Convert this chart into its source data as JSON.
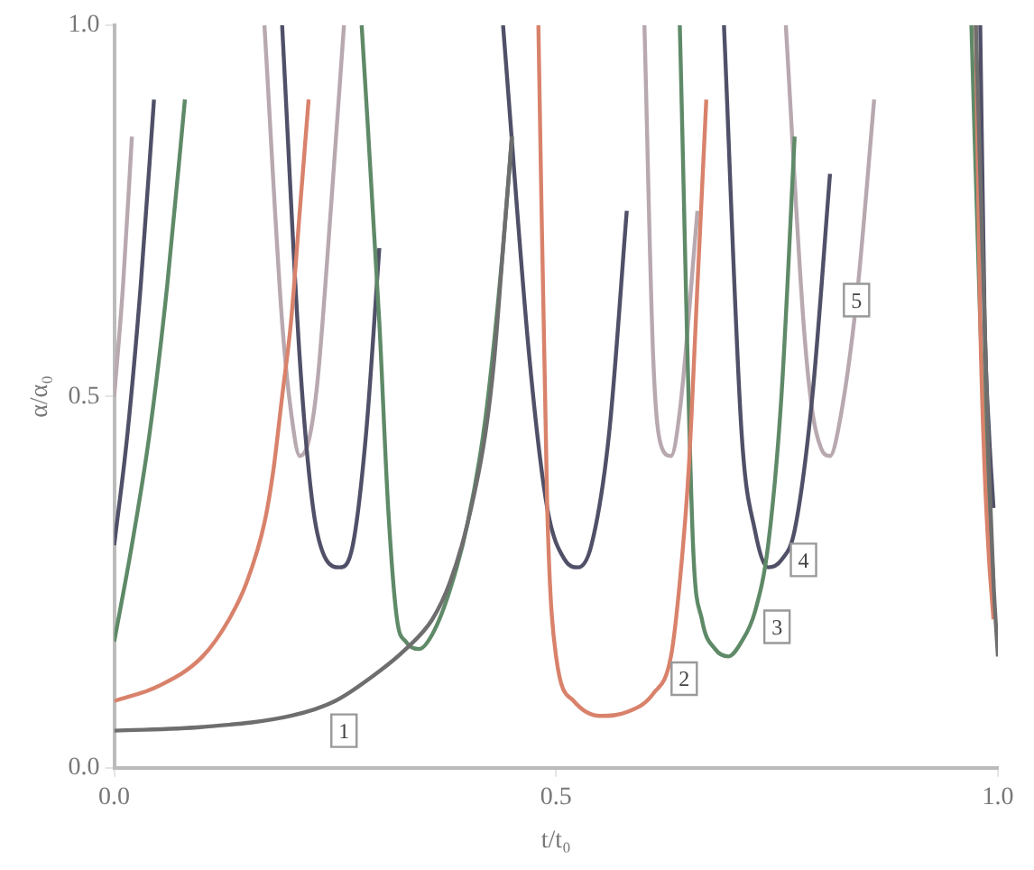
{
  "chart_data": {
    "type": "line",
    "xlabel": "t/t₀",
    "ylabel": "α/α₀",
    "xlim": [
      0,
      1
    ],
    "ylim": [
      0,
      1
    ],
    "xticks": [
      {
        "value": 0,
        "label": "0.0"
      },
      {
        "value": 0.5,
        "label": "0.5"
      },
      {
        "value": 1,
        "label": "1.0"
      }
    ],
    "yticks": [
      {
        "value": 0,
        "label": "0.0"
      },
      {
        "value": 0.5,
        "label": "0.5"
      },
      {
        "value": 1,
        "label": "1.0"
      }
    ],
    "grid": false,
    "legend": false,
    "marker": "none",
    "line_style": "solid",
    "series": [
      {
        "color": "#6e6e6e",
        "x": [
          0,
          0.1,
          0.2,
          0.25,
          0.3,
          0.33,
          0.36,
          0.38,
          0.4,
          0.42,
          0.43,
          0.44,
          0.45,
          0.46,
          0.975,
          0.985,
          0.99,
          0.995,
          1
        ],
        "values": [
          0.05,
          0.055,
          0.07,
          0.09,
          0.13,
          0.16,
          0.2,
          0.25,
          0.33,
          0.45,
          0.55,
          0.7,
          0.85,
          null,
          1,
          0.6,
          0.4,
          0.25,
          0.15
        ]
      },
      {
        "color": "#d9826b",
        "x": [
          0,
          0.05,
          0.1,
          0.13,
          0.15,
          0.17,
          0.18,
          0.19,
          0.2,
          0.21,
          0.22,
          0.23,
          0.48,
          0.49,
          0.5,
          0.52,
          0.55,
          0.58,
          0.61,
          0.63,
          0.64,
          0.65,
          0.66,
          0.67,
          0.68,
          0.975,
          0.98,
          0.985,
          0.99,
          0.995
        ],
        "values": [
          0.09,
          0.11,
          0.15,
          0.2,
          0.25,
          0.33,
          0.4,
          0.5,
          0.6,
          0.75,
          0.9,
          null,
          1,
          0.35,
          0.15,
          0.09,
          0.07,
          0.075,
          0.1,
          0.15,
          0.25,
          0.4,
          0.65,
          0.9,
          null,
          1,
          0.6,
          0.4,
          0.28,
          0.2
        ]
      },
      {
        "color": "#5f8a68",
        "x": [
          0,
          0.02,
          0.04,
          0.06,
          0.08,
          0.09,
          0.28,
          0.3,
          0.31,
          0.32,
          0.33,
          0.345,
          0.36,
          0.38,
          0.4,
          0.42,
          0.44,
          0.45,
          0.46,
          0.64,
          0.655,
          0.665,
          0.68,
          0.695,
          0.71,
          0.725,
          0.74,
          0.755,
          0.77,
          0.78,
          0.97,
          0.98,
          0.99,
          0.995
        ],
        "values": [
          0.17,
          0.3,
          0.45,
          0.65,
          0.9,
          null,
          1,
          0.6,
          0.35,
          0.2,
          0.17,
          0.16,
          0.18,
          0.24,
          0.33,
          0.47,
          0.7,
          0.85,
          null,
          1,
          0.3,
          0.2,
          0.16,
          0.15,
          0.17,
          0.21,
          0.3,
          0.5,
          0.85,
          null,
          1,
          0.6,
          0.35,
          0.25
        ]
      },
      {
        "color": "#505068",
        "x": [
          0,
          0.015,
          0.03,
          0.045,
          0.06,
          0.19,
          0.21,
          0.225,
          0.24,
          0.255,
          0.27,
          0.285,
          0.3,
          0.32,
          0.44,
          0.47,
          0.49,
          0.51,
          0.525,
          0.54,
          0.56,
          0.58,
          0.6,
          0.69,
          0.71,
          0.725,
          0.74,
          0.755,
          0.77,
          0.79,
          0.81,
          0.83,
          0.98,
          0.985,
          0.99,
          0.995
        ],
        "values": [
          0.3,
          0.45,
          0.65,
          0.9,
          null,
          1,
          0.55,
          0.35,
          0.28,
          0.27,
          0.3,
          0.45,
          0.7,
          null,
          1,
          0.55,
          0.35,
          0.28,
          0.27,
          0.3,
          0.45,
          0.75,
          null,
          1,
          0.45,
          0.32,
          0.27,
          0.28,
          0.32,
          0.5,
          0.8,
          null,
          1,
          0.6,
          0.45,
          0.35
        ]
      },
      {
        "color": "#b8a8b0",
        "x": [
          0,
          0.01,
          0.02,
          0.03,
          0.17,
          0.19,
          0.2,
          0.21,
          0.22,
          0.23,
          0.245,
          0.26,
          0.58,
          0.6,
          0.61,
          0.62,
          0.63,
          0.64,
          0.66,
          0.67,
          0.76,
          0.78,
          0.79,
          0.8,
          0.81,
          0.82,
          0.84,
          0.86
        ],
        "values": [
          0.5,
          0.65,
          0.85,
          null,
          1,
          0.6,
          0.48,
          0.42,
          0.44,
          0.52,
          0.75,
          1,
          null,
          1,
          0.55,
          0.43,
          0.42,
          0.48,
          0.75,
          null,
          1,
          0.6,
          0.48,
          0.43,
          0.42,
          0.46,
          0.63,
          0.9
        ]
      }
    ],
    "annotations": [
      {
        "text": "1",
        "x": 0.26,
        "y": 0.05
      },
      {
        "text": "2",
        "x": 0.645,
        "y": 0.12
      },
      {
        "text": "3",
        "x": 0.75,
        "y": 0.19
      },
      {
        "text": "4",
        "x": 0.78,
        "y": 0.28
      },
      {
        "text": "5",
        "x": 0.84,
        "y": 0.63
      }
    ]
  }
}
